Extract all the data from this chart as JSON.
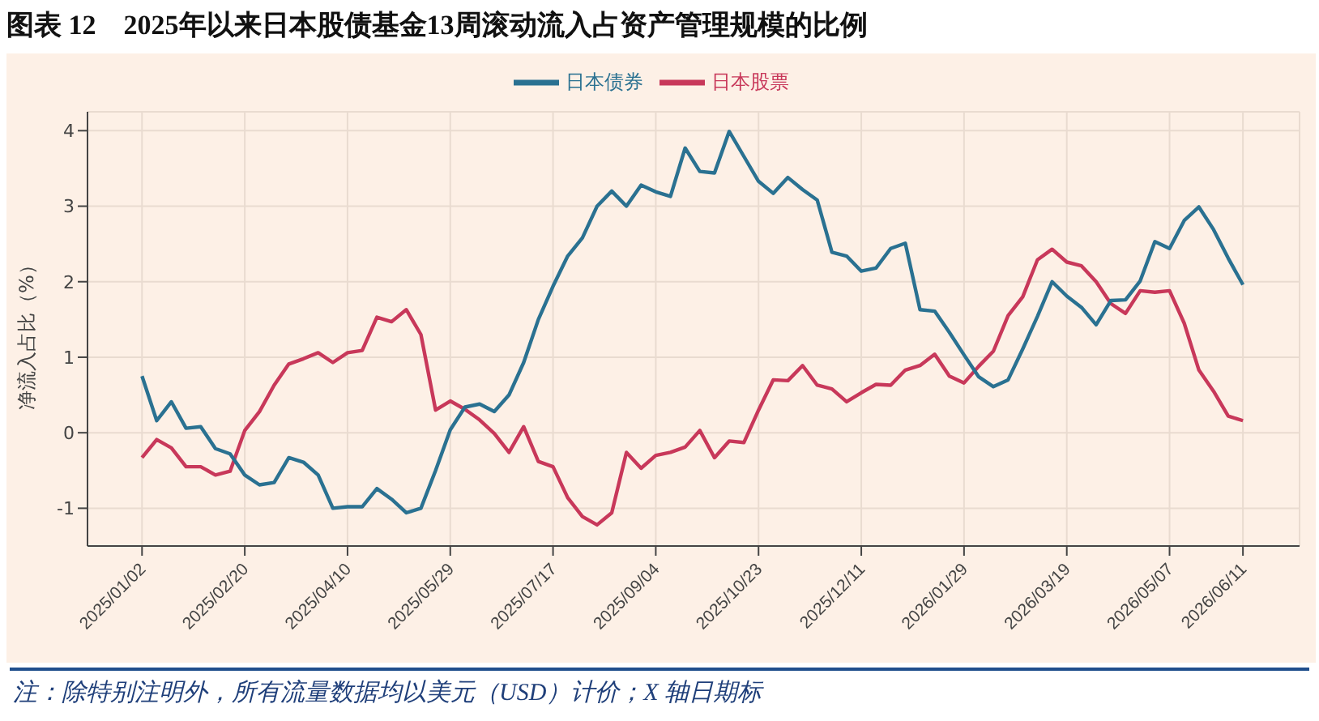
{
  "chart_data": {
    "type": "line",
    "title": "图表 12　2025年以来日本股债基金13周滚动流入占资产管理规模的比例",
    "ylabel": "净流入占比（%）",
    "annotations": [
      "注：除特别注明外，所有流量数据均以美元（USD）计价；X 轴日期标"
    ],
    "x": [
      "2025-01-02",
      "2025-01-09",
      "2025-01-16",
      "2025-01-23",
      "2025-01-30",
      "2025-02-06",
      "2025-02-13",
      "2025-02-20",
      "2025-02-27",
      "2025-03-06",
      "2025-03-13",
      "2025-03-20",
      "2025-03-27",
      "2025-04-03",
      "2025-04-10",
      "2025-04-17",
      "2025-04-24",
      "2025-05-01",
      "2025-05-08",
      "2025-05-15",
      "2025-05-22",
      "2025-05-29",
      "2025-06-05",
      "2025-06-12",
      "2025-06-19",
      "2025-06-26",
      "2025-07-03",
      "2025-07-10",
      "2025-07-17",
      "2025-07-24",
      "2025-07-31",
      "2025-08-07",
      "2025-08-14",
      "2025-08-21",
      "2025-08-28",
      "2025-09-04",
      "2025-09-11",
      "2025-09-18",
      "2025-09-25",
      "2025-10-02",
      "2025-10-09",
      "2025-10-16",
      "2025-10-23",
      "2025-10-30",
      "2025-11-06",
      "2025-11-13",
      "2025-11-20",
      "2025-11-27",
      "2025-12-04",
      "2025-12-11",
      "2025-12-18",
      "2025-12-25",
      "2026-01-01",
      "2026-01-08",
      "2026-01-15",
      "2026-01-22",
      "2026-01-29",
      "2026-02-05",
      "2026-02-12",
      "2026-02-19",
      "2026-02-26",
      "2026-03-05",
      "2026-03-12",
      "2026-03-19",
      "2026-03-26",
      "2026-04-02",
      "2026-04-09",
      "2026-04-16",
      "2026-04-23",
      "2026-04-30",
      "2026-05-07",
      "2026-05-14",
      "2026-05-21",
      "2026-05-28",
      "2026-06-04",
      "2026-06-11"
    ],
    "series": [
      {
        "name": "日本股票",
        "color": "#c8385a",
        "values": [
          -0.33,
          -0.09,
          -0.2,
          -0.45,
          -0.45,
          -0.56,
          -0.51,
          0.03,
          0.28,
          0.63,
          0.91,
          0.98,
          1.06,
          0.93,
          1.06,
          1.09,
          1.53,
          1.47,
          1.63,
          1.3,
          0.3,
          0.42,
          0.31,
          0.17,
          -0.01,
          -0.26,
          0.08,
          -0.38,
          -0.45,
          -0.86,
          -1.11,
          -1.22,
          -1.06,
          -0.26,
          -0.47,
          -0.3,
          -0.26,
          -0.19,
          0.03,
          -0.33,
          -0.11,
          -0.13,
          0.3,
          0.7,
          0.69,
          0.89,
          0.63,
          0.58,
          0.41,
          0.53,
          0.64,
          0.63,
          0.83,
          0.89,
          1.04,
          0.75,
          0.66,
          0.88,
          1.08,
          1.55,
          1.8,
          2.29,
          2.43,
          2.26,
          2.21,
          2.0,
          1.71,
          1.58,
          1.88,
          1.86,
          1.88,
          1.45,
          0.83,
          0.55,
          0.22,
          0.16
        ]
      },
      {
        "name": "日本债券",
        "color": "#2a7191",
        "values": [
          0.75,
          0.16,
          0.41,
          0.06,
          0.08,
          -0.21,
          -0.28,
          -0.56,
          -0.69,
          -0.66,
          -0.33,
          -0.39,
          -0.56,
          -1.0,
          -0.98,
          -0.98,
          -0.74,
          -0.88,
          -1.06,
          -1.0,
          -0.5,
          0.04,
          0.34,
          0.38,
          0.28,
          0.5,
          0.93,
          1.5,
          1.94,
          2.34,
          2.58,
          3.0,
          3.2,
          3.0,
          3.28,
          3.19,
          3.13,
          3.77,
          3.46,
          3.44,
          3.99,
          3.66,
          3.33,
          3.17,
          3.38,
          3.22,
          3.08,
          2.39,
          2.34,
          2.14,
          2.18,
          2.44,
          2.51,
          1.63,
          1.61,
          1.33,
          1.03,
          0.74,
          0.61,
          0.7,
          1.11,
          1.54,
          2.0,
          1.81,
          1.66,
          1.43,
          1.75,
          1.76,
          2.01,
          2.53,
          2.44,
          2.81,
          2.99,
          2.69,
          2.31,
          1.96
        ]
      }
    ],
    "xlim": [
      "2024-12-07",
      "2026-07-08"
    ],
    "xticks": [
      {
        "value": "2025-01-02",
        "label": "2025/01/02"
      },
      {
        "value": "2025-02-20",
        "label": "2025/02/20"
      },
      {
        "value": "2025-04-10",
        "label": "2025/04/10"
      },
      {
        "value": "2025-05-29",
        "label": "2025/05/29"
      },
      {
        "value": "2025-07-17",
        "label": "2025/07/17"
      },
      {
        "value": "2025-09-04",
        "label": "2025/09/04"
      },
      {
        "value": "2025-10-23",
        "label": "2025/10/23"
      },
      {
        "value": "2025-12-11",
        "label": "2025/12/11"
      },
      {
        "value": "2026-01-29",
        "label": "2026/01/29"
      },
      {
        "value": "2026-03-19",
        "label": "2026/03/19"
      },
      {
        "value": "2026-05-07",
        "label": "2026/05/07"
      },
      {
        "value": "2026-06-11",
        "label": "2026/06/11"
      }
    ],
    "ylim": [
      -1.5,
      4.25
    ],
    "yticks": [
      -1,
      0,
      1,
      2,
      3,
      4
    ],
    "grid": true,
    "legend": "top",
    "marker": "none",
    "line_style": "solid"
  }
}
